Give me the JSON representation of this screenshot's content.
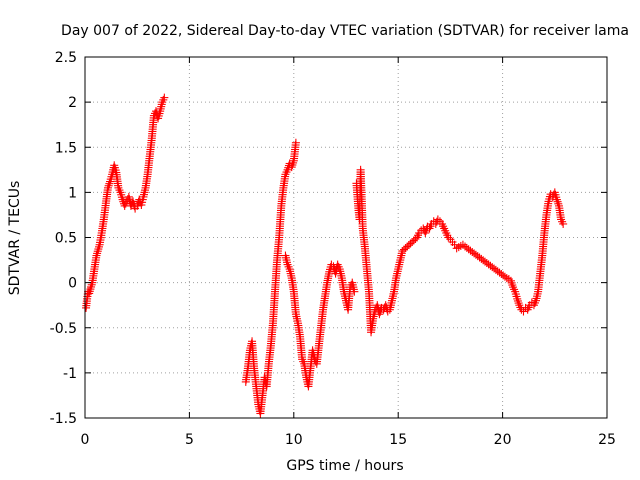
{
  "chart_data": {
    "type": "scatter",
    "title": "Day 007 of 2022, Sidereal Day-to-day VTEC variation (SDTVAR) for receiver lama",
    "xlabel": "GPS time / hours",
    "ylabel": "SDTVAR / TECUs",
    "xlim": [
      0,
      25
    ],
    "ylim": [
      -1.5,
      2.5
    ],
    "xticks": [
      0,
      5,
      10,
      15,
      20,
      25
    ],
    "yticks": [
      -1.5,
      -1,
      -0.5,
      0,
      0.5,
      1,
      1.5,
      2,
      2.5
    ],
    "xtick_labels": [
      "0",
      "5",
      "10",
      "15",
      "20",
      "25"
    ],
    "ytick_labels": [
      "-1.5",
      "-1",
      "-0.5",
      "0",
      "0.5",
      "1",
      "1.5",
      "2",
      "2.5"
    ],
    "grid": true,
    "marker": "+",
    "marker_color": "#ff0000",
    "series": [
      {
        "name": "SDTVAR",
        "points": [
          [
            0.05,
            -0.28
          ],
          [
            0.1,
            -0.18
          ],
          [
            0.15,
            -0.1
          ],
          [
            0.2,
            -0.12
          ],
          [
            0.35,
            0.0
          ],
          [
            0.45,
            0.15
          ],
          [
            0.55,
            0.3
          ],
          [
            0.7,
            0.42
          ],
          [
            0.8,
            0.55
          ],
          [
            0.9,
            0.7
          ],
          [
            1.0,
            0.88
          ],
          [
            1.1,
            1.05
          ],
          [
            1.2,
            1.12
          ],
          [
            1.3,
            1.2
          ],
          [
            1.4,
            1.3
          ],
          [
            1.5,
            1.22
          ],
          [
            1.6,
            1.05
          ],
          [
            1.7,
            1.0
          ],
          [
            1.8,
            0.92
          ],
          [
            1.9,
            0.85
          ],
          [
            2.0,
            0.9
          ],
          [
            2.1,
            0.95
          ],
          [
            2.2,
            0.85
          ],
          [
            2.3,
            0.9
          ],
          [
            2.4,
            0.82
          ],
          [
            2.5,
            0.85
          ],
          [
            2.6,
            0.92
          ],
          [
            2.7,
            0.86
          ],
          [
            2.8,
            0.95
          ],
          [
            2.9,
            1.05
          ],
          [
            3.0,
            1.2
          ],
          [
            3.1,
            1.4
          ],
          [
            3.2,
            1.6
          ],
          [
            3.3,
            1.85
          ],
          [
            3.4,
            1.9
          ],
          [
            3.5,
            1.82
          ],
          [
            3.6,
            1.9
          ],
          [
            3.7,
            2.0
          ],
          [
            3.8,
            2.05
          ],
          [
            7.7,
            -1.1
          ],
          [
            7.8,
            -0.95
          ],
          [
            7.9,
            -0.75
          ],
          [
            8.0,
            -0.65
          ],
          [
            8.1,
            -0.95
          ],
          [
            8.2,
            -1.15
          ],
          [
            8.3,
            -1.35
          ],
          [
            8.4,
            -1.45
          ],
          [
            8.5,
            -1.25
          ],
          [
            8.6,
            -1.05
          ],
          [
            8.7,
            -1.15
          ],
          [
            8.8,
            -0.9
          ],
          [
            8.9,
            -0.7
          ],
          [
            9.0,
            -0.45
          ],
          [
            9.1,
            -0.1
          ],
          [
            9.2,
            0.25
          ],
          [
            9.3,
            0.5
          ],
          [
            9.4,
            0.85
          ],
          [
            9.5,
            1.05
          ],
          [
            9.6,
            1.2
          ],
          [
            9.7,
            1.25
          ],
          [
            9.8,
            1.32
          ],
          [
            9.9,
            1.28
          ],
          [
            10.0,
            1.35
          ],
          [
            10.1,
            1.55
          ],
          [
            9.6,
            0.3
          ],
          [
            9.7,
            0.2
          ],
          [
            9.8,
            0.15
          ],
          [
            9.9,
            0.05
          ],
          [
            10.0,
            -0.1
          ],
          [
            10.1,
            -0.35
          ],
          [
            10.2,
            -0.45
          ],
          [
            10.3,
            -0.6
          ],
          [
            10.4,
            -0.85
          ],
          [
            10.5,
            -0.9
          ],
          [
            10.6,
            -1.05
          ],
          [
            10.7,
            -1.15
          ],
          [
            10.8,
            -0.95
          ],
          [
            10.9,
            -0.75
          ],
          [
            11.0,
            -0.85
          ],
          [
            11.1,
            -0.9
          ],
          [
            11.2,
            -0.7
          ],
          [
            11.3,
            -0.5
          ],
          [
            11.4,
            -0.3
          ],
          [
            11.5,
            -0.15
          ],
          [
            11.6,
            0.0
          ],
          [
            11.7,
            0.12
          ],
          [
            11.8,
            0.2
          ],
          [
            11.9,
            0.18
          ],
          [
            12.0,
            0.1
          ],
          [
            12.1,
            0.2
          ],
          [
            12.2,
            0.15
          ],
          [
            12.3,
            0.05
          ],
          [
            12.4,
            -0.1
          ],
          [
            12.5,
            -0.2
          ],
          [
            12.6,
            -0.3
          ],
          [
            12.7,
            -0.05
          ],
          [
            12.8,
            0.0
          ],
          [
            12.9,
            -0.1
          ],
          [
            13.0,
            1.1
          ],
          [
            13.05,
            0.95
          ],
          [
            13.1,
            0.8
          ],
          [
            13.15,
            0.7
          ],
          [
            13.2,
            1.25
          ],
          [
            13.25,
            0.95
          ],
          [
            13.3,
            0.6
          ],
          [
            13.4,
            0.4
          ],
          [
            13.5,
            0.15
          ],
          [
            13.6,
            -0.1
          ],
          [
            13.7,
            -0.55
          ],
          [
            13.8,
            -0.4
          ],
          [
            13.9,
            -0.3
          ],
          [
            14.0,
            -0.25
          ],
          [
            14.1,
            -0.35
          ],
          [
            14.2,
            -0.28
          ],
          [
            14.3,
            -0.3
          ],
          [
            14.4,
            -0.25
          ],
          [
            14.5,
            -0.32
          ],
          [
            14.6,
            -0.3
          ],
          [
            14.7,
            -0.2
          ],
          [
            14.8,
            -0.1
          ],
          [
            14.9,
            0.05
          ],
          [
            15.0,
            0.15
          ],
          [
            15.1,
            0.25
          ],
          [
            15.2,
            0.35
          ],
          [
            15.9,
            0.5
          ],
          [
            16.0,
            0.55
          ],
          [
            16.1,
            0.58
          ],
          [
            16.2,
            0.6
          ],
          [
            16.3,
            0.55
          ],
          [
            16.4,
            0.62
          ],
          [
            16.5,
            0.6
          ],
          [
            16.6,
            0.65
          ],
          [
            16.7,
            0.68
          ],
          [
            16.8,
            0.65
          ],
          [
            16.9,
            0.7
          ],
          [
            17.0,
            0.68
          ],
          [
            17.1,
            0.65
          ],
          [
            17.2,
            0.6
          ],
          [
            17.3,
            0.55
          ],
          [
            17.4,
            0.5
          ],
          [
            17.5,
            0.48
          ],
          [
            17.6,
            0.45
          ],
          [
            17.7,
            0.42
          ],
          [
            17.8,
            0.38
          ],
          [
            18.1,
            0.42
          ],
          [
            18.2,
            0.4
          ],
          [
            20.2,
            0.05
          ],
          [
            20.3,
            0.04
          ],
          [
            20.4,
            0.02
          ],
          [
            20.5,
            -0.05
          ],
          [
            20.6,
            -0.1
          ],
          [
            20.7,
            -0.18
          ],
          [
            20.8,
            -0.25
          ],
          [
            20.9,
            -0.3
          ],
          [
            21.0,
            -0.32
          ],
          [
            21.1,
            -0.28
          ],
          [
            21.2,
            -0.3
          ],
          [
            21.3,
            -0.25
          ],
          [
            21.4,
            -0.22
          ],
          [
            21.5,
            -0.25
          ],
          [
            21.6,
            -0.2
          ],
          [
            21.7,
            -0.1
          ],
          [
            21.8,
            0.1
          ],
          [
            21.9,
            0.3
          ],
          [
            22.0,
            0.55
          ],
          [
            22.1,
            0.75
          ],
          [
            22.2,
            0.9
          ],
          [
            22.3,
            0.98
          ],
          [
            22.4,
            0.95
          ],
          [
            22.5,
            1.0
          ],
          [
            22.6,
            0.92
          ],
          [
            22.7,
            0.85
          ],
          [
            22.8,
            0.7
          ],
          [
            22.9,
            0.65
          ]
        ]
      }
    ]
  }
}
